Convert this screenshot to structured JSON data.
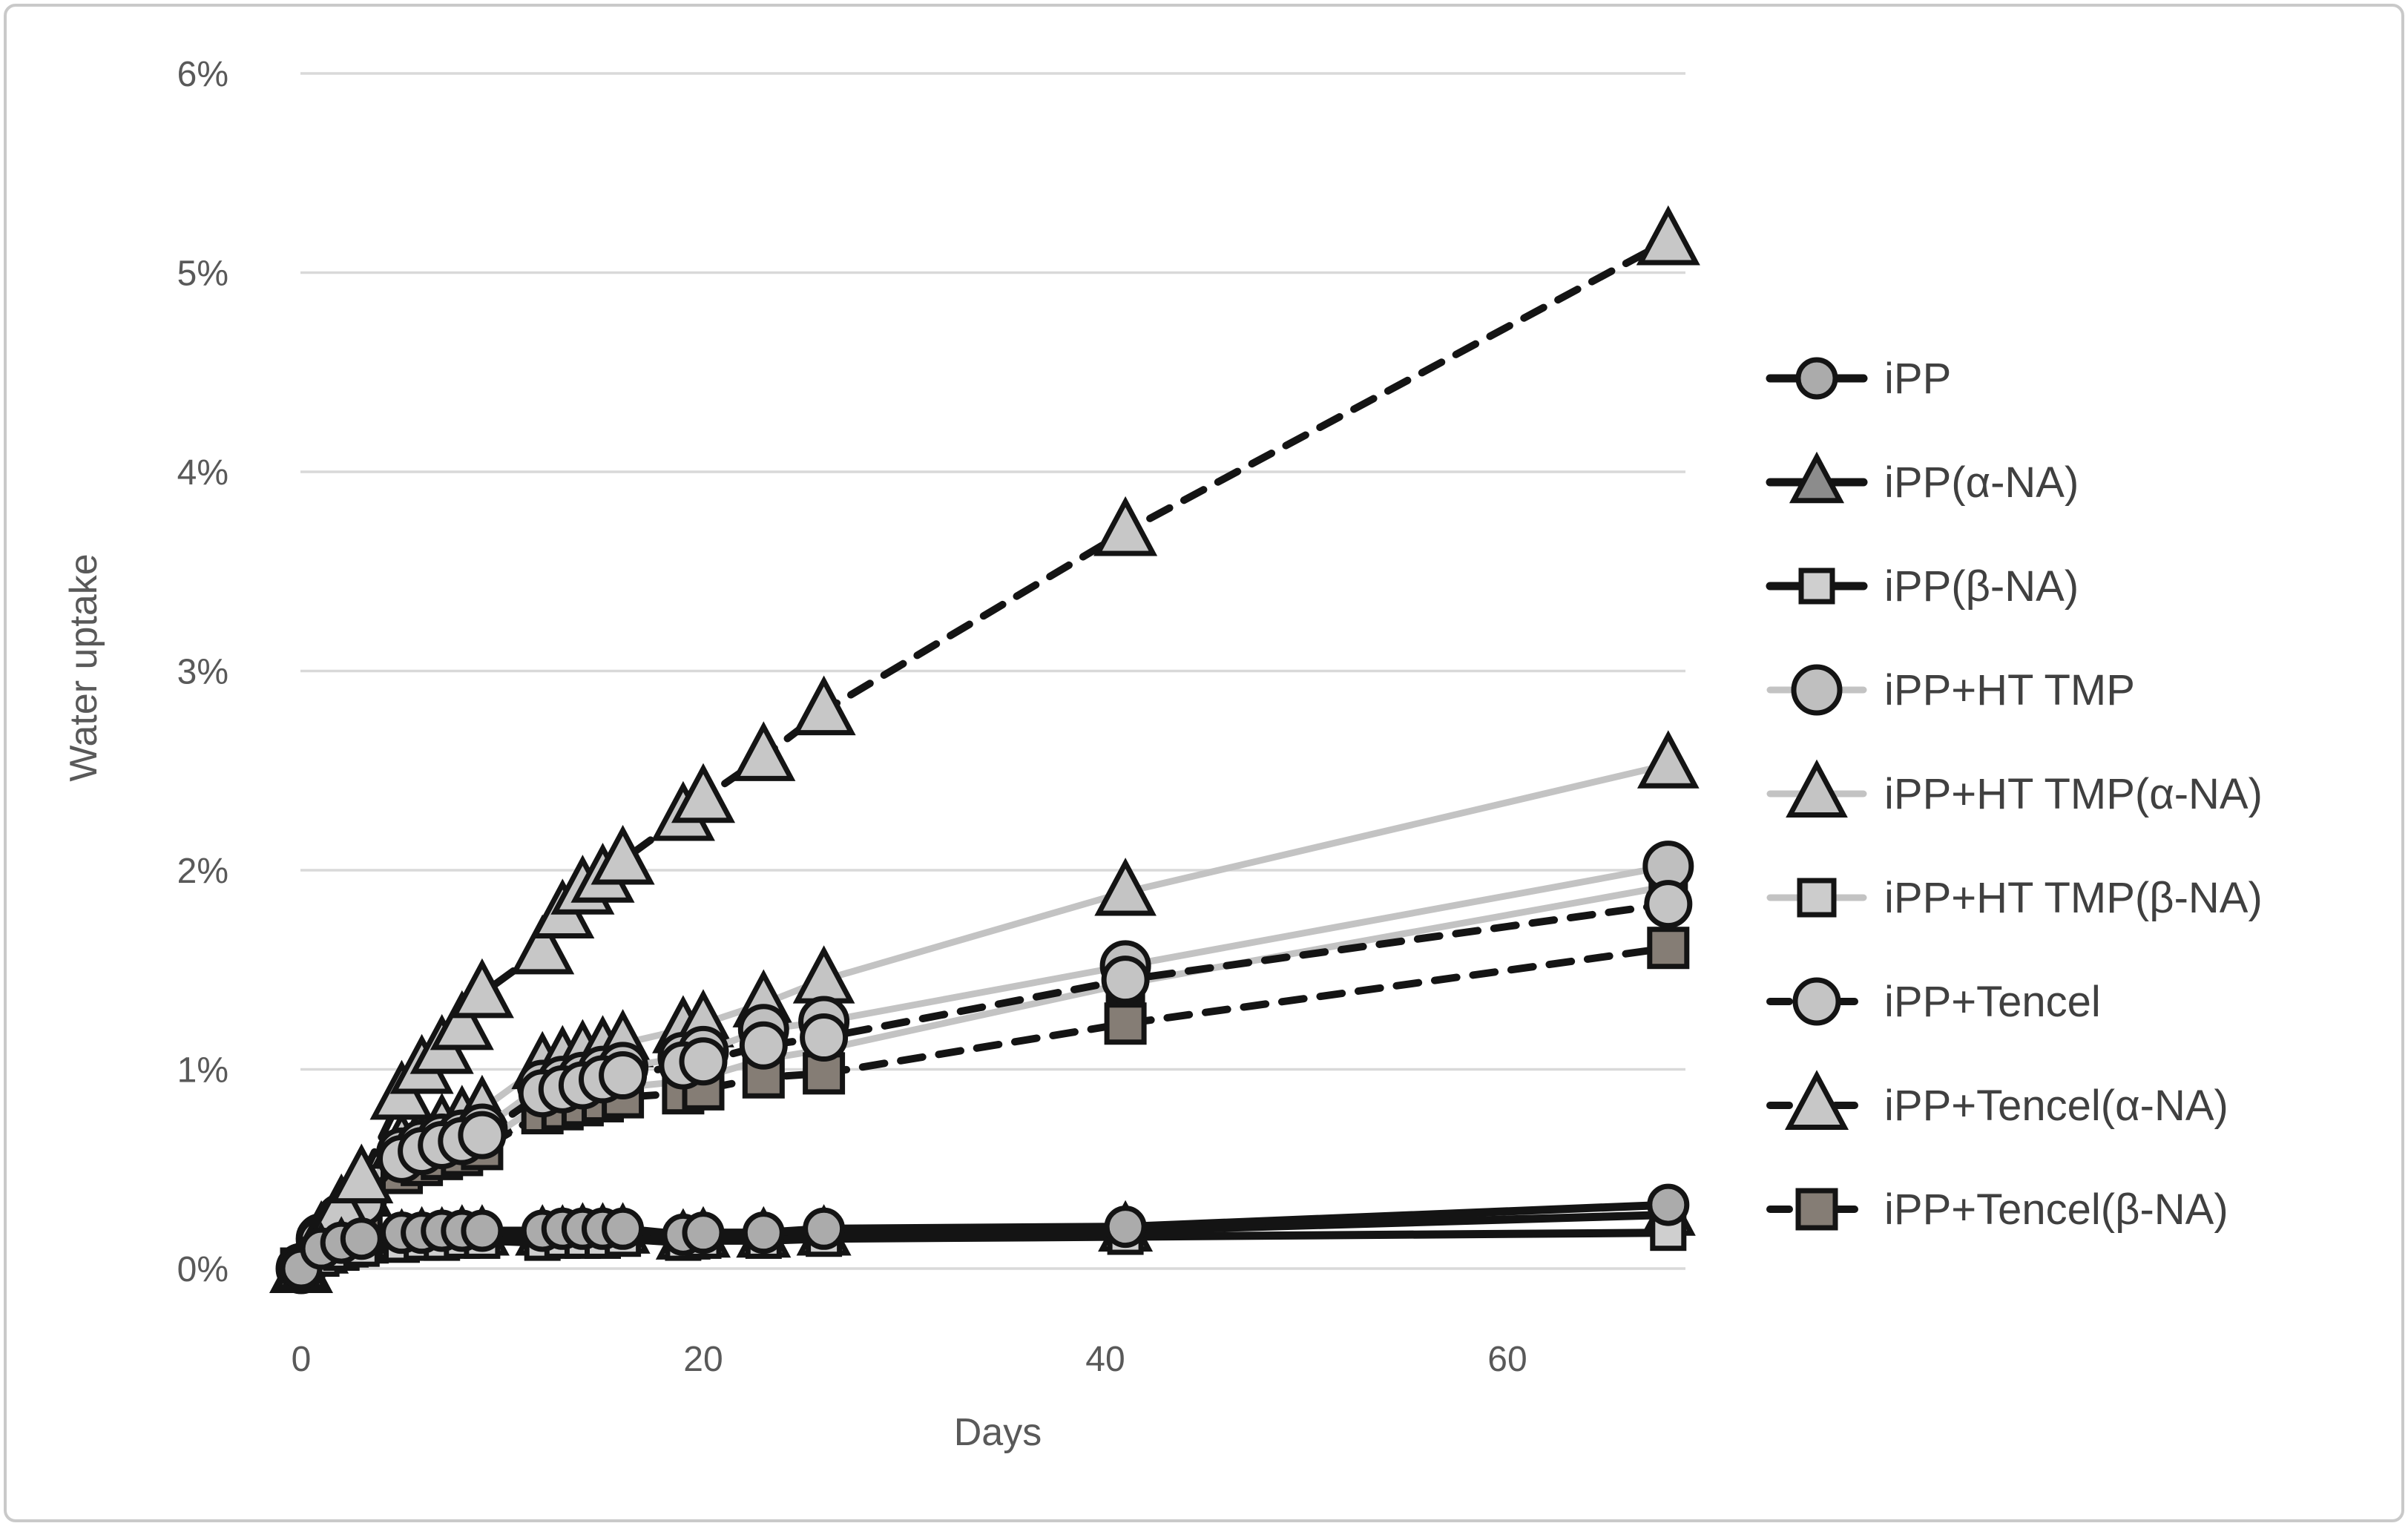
{
  "chart_data": {
    "type": "line",
    "title": "",
    "xlabel": "Days",
    "ylabel": "Water uptake",
    "legend_position": "right",
    "grid": "horizontal-only",
    "xlim": [
      0,
      69
    ],
    "ylim": [
      0,
      6
    ],
    "x_ticks": [
      {
        "value": 0,
        "label": "0"
      },
      {
        "value": 20,
        "label": "20"
      },
      {
        "value": 40,
        "label": "40"
      },
      {
        "value": 60,
        "label": "60"
      }
    ],
    "y_ticks": [
      {
        "value": 0,
        "label": "0%"
      },
      {
        "value": 1,
        "label": "1%"
      },
      {
        "value": 2,
        "label": "2%"
      },
      {
        "value": 3,
        "label": "3%"
      },
      {
        "value": 4,
        "label": "4%"
      },
      {
        "value": 5,
        "label": "5%"
      },
      {
        "value": 6,
        "label": "6%"
      }
    ],
    "x_days": [
      0,
      1,
      2,
      3,
      5,
      6,
      7,
      8,
      9,
      12,
      13,
      14,
      15,
      16,
      19,
      20,
      23,
      26,
      41,
      68
    ],
    "series": [
      {
        "name": "iPP",
        "marker": "circle",
        "marker_fill": "#ababab",
        "marker_size": 25,
        "line_color": "#141414",
        "line_style": "solid",
        "line_width": 11,
        "values": [
          0.0,
          0.1,
          0.13,
          0.15,
          0.18,
          0.18,
          0.19,
          0.19,
          0.19,
          0.19,
          0.2,
          0.2,
          0.2,
          0.2,
          0.17,
          0.18,
          0.18,
          0.2,
          0.21,
          0.32
        ]
      },
      {
        "name": "iPP(α-NA)",
        "marker": "triangle",
        "marker_fill": "#8c8c8c",
        "marker_size": 26,
        "line_color": "#141414",
        "line_style": "solid",
        "line_width": 11,
        "values": [
          0.0,
          0.08,
          0.11,
          0.13,
          0.15,
          0.16,
          0.16,
          0.17,
          0.17,
          0.17,
          0.17,
          0.18,
          0.18,
          0.18,
          0.15,
          0.16,
          0.16,
          0.17,
          0.19,
          0.27
        ]
      },
      {
        "name": "iPP(β-NA)",
        "marker": "square",
        "marker_fill": "#cfcfcf",
        "marker_size": 21,
        "line_color": "#141414",
        "line_style": "solid",
        "line_width": 11,
        "values": [
          0.0,
          0.05,
          0.08,
          0.1,
          0.12,
          0.13,
          0.13,
          0.14,
          0.14,
          0.13,
          0.14,
          0.14,
          0.14,
          0.15,
          0.13,
          0.14,
          0.14,
          0.15,
          0.16,
          0.18
        ]
      },
      {
        "name": "iPP+HT TMP",
        "marker": "circle",
        "marker_fill": "#bfbfbf",
        "marker_size": 31,
        "line_color": "#c3c3c3",
        "line_style": "solid",
        "line_width": 9,
        "values": [
          0.0,
          0.15,
          0.25,
          0.35,
          0.58,
          0.62,
          0.65,
          0.67,
          0.7,
          0.92,
          0.94,
          0.96,
          0.99,
          1.01,
          1.06,
          1.09,
          1.2,
          1.24,
          1.52,
          2.02
        ]
      },
      {
        "name": "iPP+HT TMP(α-NA)",
        "marker": "triangle",
        "marker_fill": "#c4c4c4",
        "marker_size": 30,
        "line_color": "#c3c3c3",
        "line_style": "solid",
        "line_width": 9,
        "values": [
          0.0,
          0.17,
          0.28,
          0.38,
          0.62,
          0.67,
          0.71,
          0.75,
          0.8,
          1.02,
          1.05,
          1.08,
          1.1,
          1.13,
          1.2,
          1.23,
          1.33,
          1.45,
          1.89,
          2.53
        ]
      },
      {
        "name": "iPP+HT TMP(β-NA)",
        "marker": "square",
        "marker_fill": "#cccccc",
        "marker_size": 23,
        "line_color": "#c3c3c3",
        "line_style": "solid",
        "line_width": 9,
        "values": [
          0.0,
          0.12,
          0.2,
          0.3,
          0.51,
          0.55,
          0.58,
          0.6,
          0.63,
          0.83,
          0.85,
          0.87,
          0.89,
          0.91,
          0.94,
          0.96,
          1.05,
          1.1,
          1.43,
          1.92
        ]
      },
      {
        "name": "iPP+Tencel",
        "marker": "circle",
        "marker_fill": "#c4c4c4",
        "marker_size": 29,
        "line_color": "#141414",
        "line_style": "dashed",
        "line_width": 10,
        "values": [
          0.0,
          0.14,
          0.23,
          0.33,
          0.55,
          0.59,
          0.62,
          0.64,
          0.67,
          0.88,
          0.9,
          0.92,
          0.95,
          0.97,
          1.02,
          1.04,
          1.12,
          1.16,
          1.45,
          1.83
        ]
      },
      {
        "name": "iPP+Tencel(α-NA)",
        "marker": "triangle",
        "marker_fill": "#c7c7c7",
        "marker_size": 31,
        "line_color": "#141414",
        "line_style": "dashed",
        "line_width": 10,
        "values": [
          0.0,
          0.15,
          0.3,
          0.45,
          0.87,
          1.0,
          1.1,
          1.22,
          1.38,
          1.6,
          1.78,
          1.9,
          1.96,
          2.05,
          2.27,
          2.36,
          2.57,
          2.8,
          3.7,
          5.16
        ]
      },
      {
        "name": "iPP+Tencel(β-NA)",
        "marker": "square",
        "marker_fill": "#857d75",
        "marker_size": 25,
        "line_color": "#141414",
        "line_style": "dashed",
        "line_width": 10,
        "values": [
          0.0,
          0.1,
          0.18,
          0.27,
          0.48,
          0.52,
          0.55,
          0.57,
          0.6,
          0.78,
          0.8,
          0.82,
          0.84,
          0.86,
          0.88,
          0.9,
          0.96,
          0.98,
          1.23,
          1.61
        ]
      }
    ],
    "render_order": [
      4,
      5,
      3,
      8,
      6,
      7,
      1,
      2,
      0
    ]
  },
  "legend": {
    "items": [
      "iPP",
      "iPP(α-NA)",
      "iPP(β-NA)",
      "iPP+HT TMP",
      "iPP+HT TMP(α-NA)",
      "iPP+HT TMP(β-NA)",
      "iPP+Tencel",
      "iPP+Tencel(α-NA)",
      "iPP+Tencel(β-NA)"
    ]
  },
  "colors": {
    "background": "#ffffff",
    "frame_border": "#c9c9c9",
    "gridline": "#d9d9d9",
    "axis_text": "#595959",
    "legend_text": "#404040",
    "black_line": "#141414",
    "gray_line": "#c3c3c3",
    "marker_stroke": "#141414"
  }
}
